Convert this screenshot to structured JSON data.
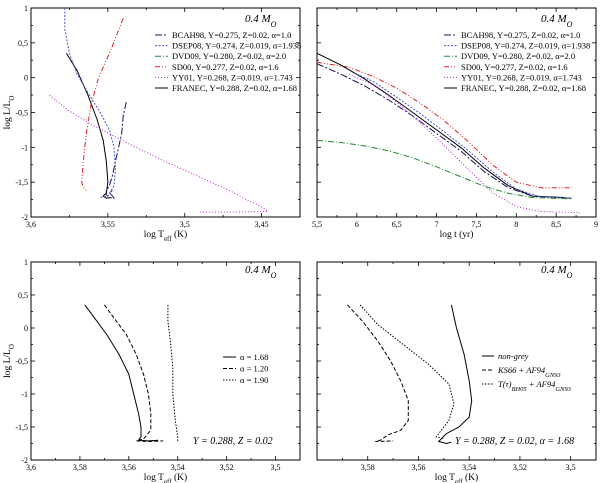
{
  "figure": {
    "mass_label": "0.4 M",
    "mass_sub": "O"
  },
  "series_styles": {
    "BCAH98": {
      "color": "#1a1060",
      "dash": "7,2,2,2"
    },
    "DSEP08": {
      "color": "#4a55d0",
      "dash": "2,1.5"
    },
    "DVD09": {
      "color": "#1e8a2a",
      "dash": "6,2,1,2"
    },
    "SD00": {
      "color": "#e01e1e",
      "dash": "5,2,1,2,1,2"
    },
    "YY01": {
      "color": "#c020d0",
      "dash": "1,2"
    },
    "FRANEC": {
      "color": "#000000",
      "dash": ""
    },
    "alpha_168": {
      "color": "#000000",
      "dash": ""
    },
    "alpha_120": {
      "color": "#000000",
      "dash": "4,2"
    },
    "alpha_190": {
      "color": "#000000",
      "dash": "1.5,1.5"
    },
    "nongrey": {
      "color": "#000000",
      "dash": ""
    },
    "ks66": {
      "color": "#000000",
      "dash": "4,2"
    },
    "bh05": {
      "color": "#000000",
      "dash": "1.5,1.5"
    }
  },
  "chart_data": [
    {
      "id": "top-left",
      "type": "line",
      "title": "",
      "xlabel": "log T",
      "xlabel_sub": "eff",
      "xlabel_unit": " (K)",
      "ylabel": "log L/L",
      "ylabel_sub": "O",
      "xlim": [
        3.6,
        3.425
      ],
      "ylim": [
        -2.0,
        1.0
      ],
      "xticks": [
        {
          "v": 3.6,
          "label": "3,6"
        },
        {
          "v": 3.55,
          "label": "3,55"
        },
        {
          "v": 3.5,
          "label": "3,5"
        },
        {
          "v": 3.45,
          "label": "3,45"
        }
      ],
      "yticks": [
        {
          "v": 1,
          "label": "1"
        },
        {
          "v": 0.5,
          "label": "0,5"
        },
        {
          "v": 0,
          "label": "0"
        },
        {
          "v": -0.5,
          "label": "-0,5"
        },
        {
          "v": -1,
          "label": "-1"
        },
        {
          "v": -1.5,
          "label": "-1,5"
        },
        {
          "v": -2,
          "label": "-2"
        }
      ],
      "show_ytick_labels": true,
      "legend": [
        {
          "key": "BCAH98",
          "label": "BCAH98, Y=0.275, Z=0.02, α=1.0"
        },
        {
          "key": "DSEP08",
          "label": "DSEP08, Y=0.274, Z=0.019, α=1.938"
        },
        {
          "key": "DVD09",
          "label": "DVD09, Y=0.280, Z=0.02, α=2.0"
        },
        {
          "key": "SD00",
          "label": "SD00, Y=0.277, Z=0.02, α=1.6"
        },
        {
          "key": "YY01",
          "label": "YY01, Y=0.268, Z=0.019, α=1.743"
        },
        {
          "key": "FRANEC",
          "label": "FRANEC, Y=0.288, Z=0.02, α=1.68"
        }
      ],
      "series": [
        {
          "key": "FRANEC",
          "x": [
            3.577,
            3.57,
            3.563,
            3.557,
            3.553,
            3.551,
            3.55,
            3.551,
            3.553,
            3.551,
            3.548
          ],
          "y": [
            0.35,
            0.1,
            -0.25,
            -0.6,
            -0.9,
            -1.2,
            -1.5,
            -1.66,
            -1.7,
            -1.73,
            -1.72
          ]
        },
        {
          "key": "BCAH98",
          "x": [
            3.538,
            3.54,
            3.541,
            3.543,
            3.545,
            3.547,
            3.549,
            3.551,
            3.551,
            3.549,
            3.546,
            3.547,
            3.549,
            3.547
          ],
          "y": [
            -0.35,
            -0.55,
            -0.8,
            -1.0,
            -1.2,
            -1.4,
            -1.55,
            -1.62,
            -1.68,
            -1.72,
            -1.73,
            -1.7,
            -1.65,
            -1.62
          ]
        },
        {
          "key": "SD00",
          "x": [
            3.54,
            3.548,
            3.556,
            3.561,
            3.564,
            3.566,
            3.567,
            3.566,
            3.564,
            3.563
          ],
          "y": [
            0.85,
            0.4,
            0.0,
            -0.4,
            -0.8,
            -1.2,
            -1.5,
            -1.57,
            -1.62,
            -1.6
          ]
        },
        {
          "key": "DSEP08",
          "x": [
            3.578,
            3.578,
            3.575,
            3.57,
            3.562,
            3.555,
            3.549,
            3.546,
            3.545,
            3.546,
            3.55,
            3.555
          ],
          "y": [
            1.0,
            0.7,
            0.35,
            0.05,
            -0.25,
            -0.5,
            -0.75,
            -1.0,
            -1.3,
            -1.55,
            -1.7,
            -1.72
          ]
        },
        {
          "key": "YY01",
          "x": [
            3.588,
            3.575,
            3.56,
            3.545,
            3.53,
            3.515,
            3.5,
            3.485,
            3.47,
            3.46,
            3.452,
            3.448,
            3.446,
            3.47,
            3.49
          ],
          "y": [
            -0.25,
            -0.48,
            -0.68,
            -0.85,
            -1.02,
            -1.18,
            -1.33,
            -1.48,
            -1.63,
            -1.75,
            -1.83,
            -1.88,
            -1.92,
            -1.93,
            -1.93
          ]
        }
      ],
      "notes": []
    },
    {
      "id": "top-right",
      "type": "line",
      "title": "",
      "xlabel": "log t (yr)",
      "xlabel_sub": "",
      "xlabel_unit": "",
      "ylabel": "",
      "ylabel_sub": "",
      "xlim": [
        5.5,
        9.0
      ],
      "ylim": [
        -2.0,
        1.0
      ],
      "xticks": [
        {
          "v": 5.5,
          "label": "5,5"
        },
        {
          "v": 6,
          "label": "6"
        },
        {
          "v": 6.5,
          "label": "6,5"
        },
        {
          "v": 7,
          "label": "7"
        },
        {
          "v": 7.5,
          "label": "7,5"
        },
        {
          "v": 8,
          "label": "8"
        },
        {
          "v": 8.5,
          "label": "8,5"
        },
        {
          "v": 9,
          "label": "9"
        }
      ],
      "yticks": [
        {
          "v": 1,
          "label": ""
        },
        {
          "v": 0.5,
          "label": ""
        },
        {
          "v": 0,
          "label": ""
        },
        {
          "v": -0.5,
          "label": ""
        },
        {
          "v": -1,
          "label": ""
        },
        {
          "v": -1.5,
          "label": ""
        },
        {
          "v": -2,
          "label": ""
        }
      ],
      "show_ytick_labels": false,
      "legend": [
        {
          "key": "BCAH98",
          "label": "BCAH98, Y=0.275, Z=0.02, α=1.0"
        },
        {
          "key": "DSEP08",
          "label": "DSEP08, Y=0.274, Z=0.019, α=1.938"
        },
        {
          "key": "DVD09",
          "label": "DVD09, Y=0.280, Z=0.02, α=2.0"
        },
        {
          "key": "SD00",
          "label": "SD00, Y=0.277, Z=0.02, α=1.6"
        },
        {
          "key": "YY01",
          "label": "YY01, Y=0.268, Z=0.019, α=1.743"
        },
        {
          "key": "FRANEC",
          "label": "FRANEC, Y=0.288, Z=0.02, α=1.68"
        }
      ],
      "series": [
        {
          "key": "SD00",
          "x": [
            5.5,
            5.9,
            6.2,
            6.5,
            6.8,
            7.1,
            7.4,
            7.7,
            8.0,
            8.3,
            8.7
          ],
          "y": [
            0.22,
            0.15,
            0.02,
            -0.15,
            -0.37,
            -0.62,
            -0.92,
            -1.25,
            -1.5,
            -1.58,
            -1.58
          ]
        },
        {
          "key": "FRANEC",
          "x": [
            5.5,
            5.8,
            6.1,
            6.4,
            6.7,
            7.0,
            7.3,
            7.6,
            7.9,
            8.2,
            8.6
          ],
          "y": [
            0.35,
            0.18,
            -0.02,
            -0.25,
            -0.5,
            -0.75,
            -1.0,
            -1.3,
            -1.55,
            -1.7,
            -1.72
          ]
        },
        {
          "key": "BCAH98",
          "x": [
            5.5,
            5.8,
            6.1,
            6.4,
            6.7,
            7.0,
            7.3,
            7.6,
            7.9,
            8.2,
            8.7
          ],
          "y": [
            0.2,
            0.05,
            -0.12,
            -0.32,
            -0.55,
            -0.8,
            -1.05,
            -1.35,
            -1.58,
            -1.7,
            -1.73
          ]
        },
        {
          "key": "DSEP08",
          "x": [
            6.0,
            6.2,
            6.5,
            6.8,
            7.1,
            7.4,
            7.7,
            8.0,
            8.3,
            8.7
          ],
          "y": [
            0.05,
            -0.05,
            -0.28,
            -0.52,
            -0.78,
            -1.05,
            -1.35,
            -1.6,
            -1.71,
            -1.73
          ]
        },
        {
          "key": "DVD09",
          "x": [
            5.5,
            5.8,
            6.1,
            6.4,
            6.7,
            7.0,
            7.3,
            7.6,
            7.9,
            8.2,
            8.7
          ],
          "y": [
            -0.9,
            -0.93,
            -0.98,
            -1.05,
            -1.15,
            -1.28,
            -1.42,
            -1.56,
            -1.66,
            -1.72,
            -1.74
          ]
        },
        {
          "key": "YY01",
          "x": [
            5.9,
            6.2,
            6.5,
            6.8,
            7.1,
            7.4,
            7.7,
            8.0,
            8.3,
            8.8
          ],
          "y": [
            0.05,
            -0.1,
            -0.35,
            -0.65,
            -0.98,
            -1.32,
            -1.65,
            -1.85,
            -1.92,
            -1.94
          ]
        }
      ],
      "notes": []
    },
    {
      "id": "bottom-left",
      "type": "line",
      "title": "",
      "xlabel": "log T",
      "xlabel_sub": "eff",
      "xlabel_unit": " (K)",
      "ylabel": "log L/L",
      "ylabel_sub": "O",
      "xlim": [
        3.6,
        3.49
      ],
      "ylim": [
        -2.0,
        1.0
      ],
      "xticks": [
        {
          "v": 3.6,
          "label": "3,6"
        },
        {
          "v": 3.58,
          "label": "3,58"
        },
        {
          "v": 3.56,
          "label": "3,56"
        },
        {
          "v": 3.54,
          "label": "3,54"
        },
        {
          "v": 3.52,
          "label": "3,52"
        },
        {
          "v": 3.5,
          "label": "3,5"
        }
      ],
      "yticks": [
        {
          "v": 1,
          "label": "1"
        },
        {
          "v": 0.5,
          "label": "0,5"
        },
        {
          "v": 0,
          "label": "0"
        },
        {
          "v": -0.5,
          "label": "-0,5"
        },
        {
          "v": -1,
          "label": "-1"
        },
        {
          "v": -1.5,
          "label": "-1,5"
        },
        {
          "v": -2,
          "label": "-2"
        }
      ],
      "show_ytick_labels": true,
      "legend": [
        {
          "key": "alpha_168",
          "label": "α = 1.68"
        },
        {
          "key": "alpha_120",
          "label": "α = 1.20"
        },
        {
          "key": "alpha_190",
          "label": "α = 1.90"
        }
      ],
      "series": [
        {
          "key": "alpha_168",
          "x": [
            3.578,
            3.574,
            3.569,
            3.564,
            3.56,
            3.558,
            3.556,
            3.555,
            3.555,
            3.556,
            3.552,
            3.548
          ],
          "y": [
            0.35,
            0.15,
            -0.1,
            -0.4,
            -0.7,
            -1.0,
            -1.3,
            -1.5,
            -1.65,
            -1.7,
            -1.71,
            -1.7
          ]
        },
        {
          "key": "alpha_120",
          "x": [
            3.57,
            3.566,
            3.561,
            3.557,
            3.554,
            3.552,
            3.551,
            3.551,
            3.554,
            3.557,
            3.552,
            3.546
          ],
          "y": [
            0.35,
            0.15,
            -0.1,
            -0.4,
            -0.7,
            -1.0,
            -1.3,
            -1.55,
            -1.68,
            -1.71,
            -1.72,
            -1.71
          ]
        },
        {
          "key": "alpha_190",
          "x": [
            3.544,
            3.544,
            3.543,
            3.542,
            3.542,
            3.541,
            3.54,
            3.54
          ],
          "y": [
            0.35,
            0.1,
            -0.2,
            -0.6,
            -1.0,
            -1.4,
            -1.65,
            -1.72
          ]
        }
      ],
      "notes": [
        {
          "text": "Y = 0.288, Z = 0.02"
        }
      ]
    },
    {
      "id": "bottom-right",
      "type": "line",
      "title": "",
      "xlabel": "log T",
      "xlabel_sub": "eff",
      "xlabel_unit": " (K)",
      "ylabel": "",
      "ylabel_sub": "",
      "xlim": [
        3.6,
        3.49
      ],
      "ylim": [
        -2.0,
        1.0
      ],
      "xticks": [
        {
          "v": 3.6,
          "label": ""
        },
        {
          "v": 3.58,
          "label": "3,58"
        },
        {
          "v": 3.56,
          "label": "3,56"
        },
        {
          "v": 3.54,
          "label": "3,54"
        },
        {
          "v": 3.52,
          "label": "3,52"
        },
        {
          "v": 3.5,
          "label": "3,5"
        }
      ],
      "yticks": [
        {
          "v": 1,
          "label": ""
        },
        {
          "v": 0.5,
          "label": ""
        },
        {
          "v": 0,
          "label": ""
        },
        {
          "v": -0.5,
          "label": ""
        },
        {
          "v": -1,
          "label": ""
        },
        {
          "v": -1.5,
          "label": ""
        },
        {
          "v": -2,
          "label": ""
        }
      ],
      "show_ytick_labels": false,
      "legend": [
        {
          "key": "nongrey",
          "label": "non-grey"
        },
        {
          "key": "ks66",
          "label": "KS66 + AF94",
          "sub": "GN93"
        },
        {
          "key": "bh05",
          "label": "T(τ)",
          "sub": "BH05",
          "label2": " + AF94",
          "sub2": "GN93"
        }
      ],
      "series": [
        {
          "key": "nongrey",
          "x": [
            3.547,
            3.545,
            3.542,
            3.54,
            3.539,
            3.54,
            3.544,
            3.549,
            3.552,
            3.549,
            3.547
          ],
          "y": [
            0.35,
            0.0,
            -0.4,
            -0.8,
            -1.1,
            -1.35,
            -1.5,
            -1.6,
            -1.72,
            -1.75,
            -1.73
          ]
        },
        {
          "key": "ks66",
          "x": [
            3.588,
            3.582,
            3.576,
            3.571,
            3.567,
            3.564,
            3.564,
            3.567,
            3.572,
            3.575,
            3.577,
            3.57
          ],
          "y": [
            0.35,
            0.1,
            -0.2,
            -0.5,
            -0.8,
            -1.1,
            -1.4,
            -1.55,
            -1.62,
            -1.7,
            -1.72,
            -1.71
          ]
        },
        {
          "key": "bh05",
          "x": [
            3.583,
            3.576,
            3.566,
            3.556,
            3.548,
            3.546,
            3.548,
            3.551,
            3.553,
            3.55
          ],
          "y": [
            0.35,
            0.05,
            -0.25,
            -0.55,
            -0.85,
            -1.15,
            -1.4,
            -1.55,
            -1.65,
            -1.68
          ]
        }
      ],
      "notes": [
        {
          "text": "Y = 0.288, Z = 0.02, α = 1.68"
        }
      ]
    }
  ]
}
